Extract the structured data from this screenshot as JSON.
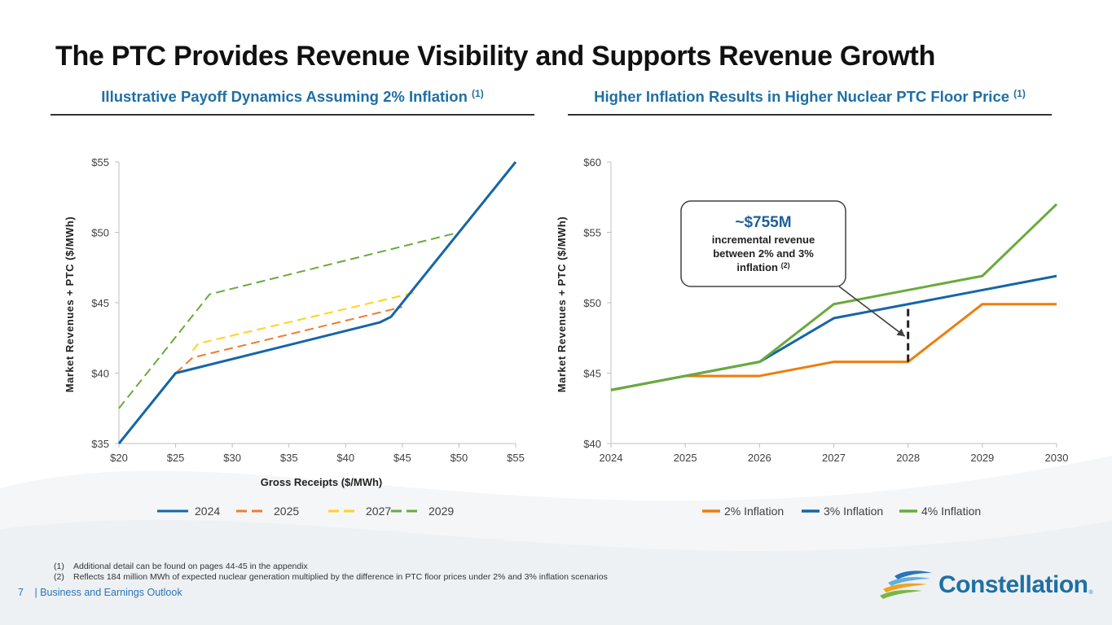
{
  "title": "The PTC Provides Revenue Visibility and Supports Revenue Growth",
  "left_panel": {
    "heading": "Illustrative Payoff Dynamics Assuming 2% Inflation",
    "heading_note": "(1)"
  },
  "right_panel": {
    "heading": "Higher Inflation Results in Higher Nuclear PTC Floor Price",
    "heading_note": "(1)"
  },
  "chart_data": [
    {
      "type": "line",
      "title": "Illustrative Payoff Dynamics Assuming 2% Inflation",
      "xlabel": "Gross Receipts ($/MWh)",
      "ylabel": "Market Revenues + PTC ($/MWh)",
      "xlim": [
        20,
        55
      ],
      "ylim": [
        35,
        55
      ],
      "x_ticks": [
        20,
        25,
        30,
        35,
        40,
        45,
        50,
        55
      ],
      "x_tick_labels": [
        "$20",
        "$25",
        "$30",
        "$35",
        "$40",
        "$45",
        "$50",
        "$55"
      ],
      "y_ticks": [
        35,
        40,
        45,
        50,
        55
      ],
      "y_tick_labels": [
        "$35",
        "$40",
        "$45",
        "$50",
        "$55"
      ],
      "legend_position": "bottom",
      "series": [
        {
          "name": "2024",
          "color": "#1565a8",
          "style": "solid",
          "points": [
            [
              20,
              35
            ],
            [
              25,
              40
            ],
            [
              43,
              43.6
            ],
            [
              44,
              44
            ],
            [
              55,
              55
            ]
          ]
        },
        {
          "name": "2025",
          "color": "#ee7d31",
          "style": "dashed",
          "points": [
            [
              25,
              40
            ],
            [
              26.5,
              41.1
            ],
            [
              45,
              44.7
            ]
          ]
        },
        {
          "name": "2027",
          "color": "#ffd21f",
          "style": "dashed",
          "points": [
            [
              26.5,
              41.6
            ],
            [
              27,
              42.1
            ],
            [
              46,
              45.7
            ]
          ]
        },
        {
          "name": "2029",
          "color": "#6aaa3b",
          "style": "dashed",
          "points": [
            [
              20,
              37.5
            ],
            [
              28,
              45.6
            ],
            [
              50,
              50
            ]
          ]
        }
      ]
    },
    {
      "type": "line",
      "title": "Higher Inflation Results in Higher Nuclear PTC Floor Price",
      "xlabel": "",
      "ylabel": "Market Revenues + PTC ($/MWh)",
      "categories": [
        "2024",
        "2025",
        "2026",
        "2027",
        "2028",
        "2029",
        "2030"
      ],
      "ylim": [
        40,
        60
      ],
      "y_ticks": [
        40,
        45,
        50,
        55,
        60
      ],
      "y_tick_labels": [
        "$40",
        "$45",
        "$50",
        "$55",
        "$60"
      ],
      "legend_position": "bottom",
      "series": [
        {
          "name": "2% Inflation",
          "color": "#ee7d0e",
          "values": [
            43.8,
            44.8,
            44.8,
            45.8,
            45.8,
            49.9,
            49.9
          ]
        },
        {
          "name": "3% Inflation",
          "color": "#1565a8",
          "values": [
            43.8,
            44.8,
            45.8,
            48.9,
            49.9,
            50.9,
            51.9
          ]
        },
        {
          "name": "4% Inflation",
          "color": "#6aaa3b",
          "values": [
            43.8,
            44.8,
            45.8,
            49.9,
            50.9,
            51.9,
            57.0
          ]
        }
      ],
      "annotation": {
        "value": "~$755M",
        "line1": "incremental revenue",
        "line2": "between 2% and 3%",
        "line3": "inflation",
        "note": "(2)",
        "target_category": "2028",
        "bracket_from": 45.8,
        "bracket_to": 49.9
      }
    }
  ],
  "footnotes": [
    {
      "num": "(1)",
      "text": "Additional detail can be found on pages 44-45 in the appendix"
    },
    {
      "num": "(2)",
      "text": "Reflects 184 million MWh of expected nuclear generation multiplied by the difference in PTC floor prices under 2% and 3% inflation scenarios"
    }
  ],
  "footer": {
    "page": "7",
    "text": "| Business and Earnings Outlook"
  },
  "logo": {
    "name": "Constellation",
    "mark": "®"
  },
  "colors": {
    "accent": "#1f6fa3",
    "blue": "#1565a8",
    "orange": "#ee7d31",
    "yellow": "#ffd21f",
    "green": "#6aaa3b"
  }
}
